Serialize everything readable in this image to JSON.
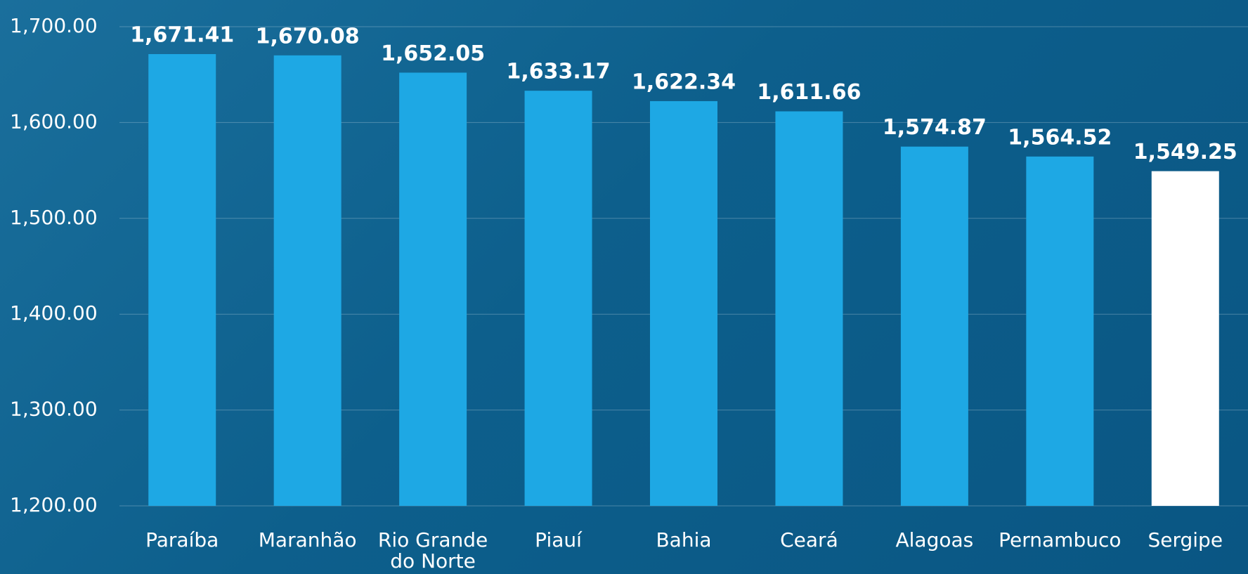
{
  "chart_data": {
    "type": "bar",
    "categories": [
      "Paraíba",
      "Maranhão",
      "Rio Grande do Norte",
      "Piauí",
      "Bahia",
      "Ceará",
      "Alagoas",
      "Pernambuco",
      "Sergipe"
    ],
    "values": [
      1671.41,
      1670.08,
      1652.05,
      1633.17,
      1622.34,
      1611.66,
      1574.87,
      1564.52,
      1549.25
    ],
    "value_labels": [
      "1,671.41",
      "1,670.08",
      "1,652.05",
      "1,633.17",
      "1,622.34",
      "1,611.66",
      "1,574.87",
      "1,564.52",
      "1,549.25"
    ],
    "colors": [
      "#1ea8e4",
      "#1ea8e4",
      "#1ea8e4",
      "#1ea8e4",
      "#1ea8e4",
      "#1ea8e4",
      "#1ea8e4",
      "#1ea8e4",
      "#ffffff"
    ],
    "ylim": [
      1200,
      1700
    ],
    "yticks": [
      {
        "value": 1200,
        "label": "1,200.00"
      },
      {
        "value": 1300,
        "label": "1,300.00"
      },
      {
        "value": 1400,
        "label": "1,400.00"
      },
      {
        "value": 1500,
        "label": "1,500.00"
      },
      {
        "value": 1600,
        "label": "1,600.00"
      },
      {
        "value": 1700,
        "label": "1,700.00"
      }
    ],
    "grid": true
  }
}
